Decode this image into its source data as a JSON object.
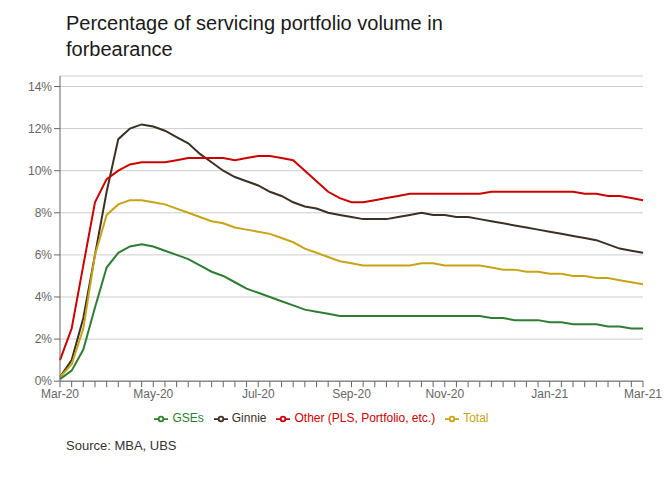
{
  "chart_data": {
    "type": "line",
    "title": "Percentage of servicing portfolio volume in\nforbearance",
    "annotations": [
      "Source: MBA, UBS"
    ],
    "categories": [
      "Mar-20",
      null,
      null,
      null,
      null,
      null,
      null,
      null,
      "May-20",
      null,
      null,
      null,
      null,
      null,
      null,
      null,
      null,
      "Jul-20",
      null,
      null,
      null,
      null,
      null,
      null,
      null,
      "Sep-20",
      null,
      null,
      null,
      null,
      null,
      null,
      null,
      "Nov-20",
      null,
      null,
      null,
      null,
      null,
      null,
      null,
      null,
      "Jan-21",
      null,
      null,
      null,
      null,
      null,
      null,
      null,
      "Mar-21"
    ],
    "series": [
      {
        "name": "Ginnie",
        "color": "#3b3024",
        "values": [
          0.002,
          0.01,
          0.03,
          0.06,
          0.09,
          0.115,
          0.12,
          0.122,
          0.121,
          0.119,
          0.116,
          0.113,
          0.108,
          0.104,
          0.1,
          0.097,
          0.095,
          0.093,
          0.09,
          0.088,
          0.085,
          0.083,
          0.082,
          0.08,
          0.079,
          0.078,
          0.077,
          0.077,
          0.077,
          0.078,
          0.079,
          0.08,
          0.079,
          0.079,
          0.078,
          0.078,
          0.077,
          0.076,
          0.075,
          0.074,
          0.073,
          0.072,
          0.071,
          0.07,
          0.069,
          0.068,
          0.067,
          0.065,
          0.063,
          0.062,
          0.061
        ]
      },
      {
        "name": "GSEs",
        "color": "#2e7d32",
        "values": [
          0.001,
          0.005,
          0.015,
          0.035,
          0.054,
          0.061,
          0.064,
          0.065,
          0.064,
          0.062,
          0.06,
          0.058,
          0.055,
          0.052,
          0.05,
          0.047,
          0.044,
          0.042,
          0.04,
          0.038,
          0.036,
          0.034,
          0.033,
          0.032,
          0.031,
          0.031,
          0.031,
          0.031,
          0.031,
          0.031,
          0.031,
          0.031,
          0.031,
          0.031,
          0.031,
          0.031,
          0.031,
          0.03,
          0.03,
          0.029,
          0.029,
          0.029,
          0.028,
          0.028,
          0.027,
          0.027,
          0.027,
          0.026,
          0.026,
          0.025,
          0.025
        ]
      },
      {
        "name": "Other (PLS, Portfolio, etc.)",
        "color": "#cc0000",
        "values": [
          0.01,
          0.025,
          0.055,
          0.085,
          0.096,
          0.1,
          0.103,
          0.104,
          0.104,
          0.104,
          0.105,
          0.106,
          0.106,
          0.106,
          0.106,
          0.105,
          0.106,
          0.107,
          0.107,
          0.106,
          0.105,
          0.1,
          0.095,
          0.09,
          0.087,
          0.085,
          0.085,
          0.086,
          0.087,
          0.088,
          0.089,
          0.089,
          0.089,
          0.089,
          0.089,
          0.089,
          0.089,
          0.09,
          0.09,
          0.09,
          0.09,
          0.09,
          0.09,
          0.09,
          0.09,
          0.089,
          0.089,
          0.088,
          0.088,
          0.087,
          0.086
        ]
      },
      {
        "name": "Total",
        "color": "#c8a415",
        "values": [
          0.002,
          0.008,
          0.025,
          0.06,
          0.079,
          0.084,
          0.086,
          0.086,
          0.085,
          0.084,
          0.082,
          0.08,
          0.078,
          0.076,
          0.075,
          0.073,
          0.072,
          0.071,
          0.07,
          0.068,
          0.066,
          0.063,
          0.061,
          0.059,
          0.057,
          0.056,
          0.055,
          0.055,
          0.055,
          0.055,
          0.055,
          0.056,
          0.056,
          0.055,
          0.055,
          0.055,
          0.055,
          0.054,
          0.053,
          0.053,
          0.052,
          0.052,
          0.051,
          0.051,
          0.05,
          0.05,
          0.049,
          0.049,
          0.048,
          0.047,
          0.046
        ]
      }
    ],
    "ylim": [
      0,
      0.145
    ],
    "yticks": [
      {
        "value": 0,
        "label": "0%"
      },
      {
        "value": 0.02,
        "label": "2%"
      },
      {
        "value": 0.04,
        "label": "4%"
      },
      {
        "value": 0.06,
        "label": "6%"
      },
      {
        "value": 0.08,
        "label": "8%"
      },
      {
        "value": 0.1,
        "label": "10%"
      },
      {
        "value": 0.12,
        "label": "12%"
      },
      {
        "value": 0.14,
        "label": "14%"
      }
    ],
    "grid": true,
    "legend": "bottom"
  }
}
